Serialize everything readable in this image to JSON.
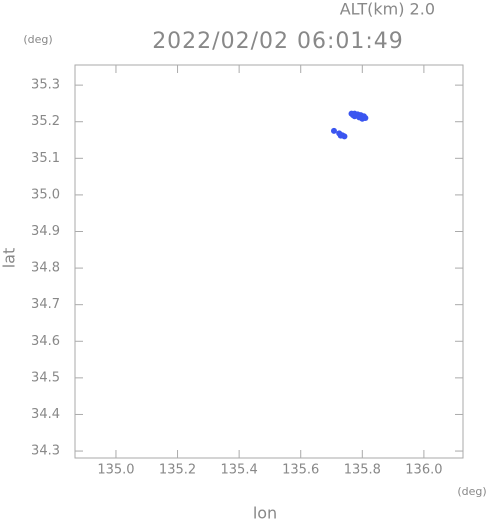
{
  "chart_data": {
    "type": "scatter",
    "annotation": "ALT(km)  2.0",
    "y_unit": "(deg)",
    "title": "2022/02/02 06:01:49",
    "x_label": "lon",
    "y_label": "lat",
    "x_unit": "(deg)",
    "color": "#3a55f0",
    "x": [
      135.765,
      135.775,
      135.785,
      135.795,
      135.805,
      135.81,
      135.775,
      135.79,
      135.8,
      135.77,
      135.725,
      135.735,
      135.742,
      135.73,
      135.708
    ],
    "values": [
      35.222,
      35.222,
      35.22,
      35.218,
      35.215,
      35.21,
      35.215,
      35.212,
      35.208,
      35.218,
      35.168,
      35.163,
      35.16,
      35.162,
      35.175
    ],
    "xlim": [
      134.867,
      136.127
    ],
    "ylim": [
      34.281,
      35.355
    ],
    "xticks": [
      {
        "value": 135,
        "label": "135.0"
      },
      135.2,
      135.4,
      135.6,
      135.8,
      {
        "value": 136,
        "label": "136.0"
      }
    ],
    "yticks": [
      35.3,
      35.2,
      35.1,
      {
        "value": 35,
        "label": "35.0"
      },
      34.9,
      34.8,
      34.7,
      34.6,
      34.5,
      34.4,
      34.3
    ]
  }
}
